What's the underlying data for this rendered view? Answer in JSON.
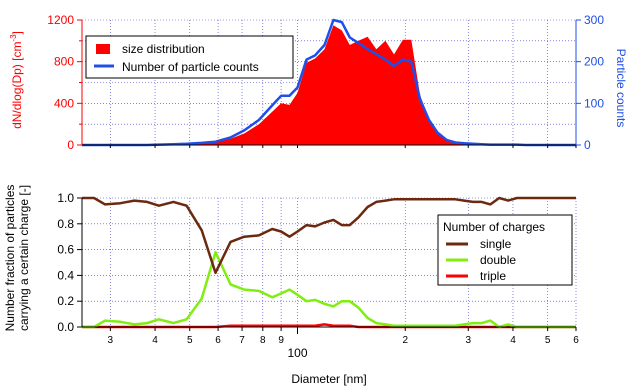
{
  "colors": {
    "red": "#ff0000",
    "blue": "#1f4fe8",
    "brown": "#6b2a10",
    "green": "#80ee10",
    "grid": "#3a3ad0",
    "axis": "#000000"
  },
  "chart_data": [
    {
      "type": "area",
      "xscale": "log",
      "xlim": [
        25,
        600
      ],
      "ylim": [
        0,
        1200
      ],
      "y2lim": [
        0,
        300
      ],
      "ylabel": "dN/dlog(Dp) [cm",
      "ylabel_sup": "-3",
      "ylabel_end": "]",
      "y2label": "Particle counts",
      "yticks": [
        "0",
        "400",
        "800",
        "1200"
      ],
      "y2ticks": [
        "0",
        "100",
        "200",
        "300"
      ],
      "grid": true,
      "legend": {
        "placement": "top-left",
        "entries": [
          "size distribution",
          "Number of particle counts"
        ]
      },
      "x": [
        25,
        27,
        29,
        32,
        35,
        38,
        41,
        45,
        49,
        54,
        59,
        65,
        71,
        78,
        85,
        90,
        95,
        100,
        106,
        112,
        119,
        126,
        133,
        140,
        148,
        157,
        166,
        176,
        186,
        197,
        208,
        220,
        233,
        246,
        261,
        276,
        292,
        309,
        327,
        346,
        366,
        388,
        410,
        434,
        460,
        487,
        515,
        545,
        577,
        600
      ],
      "series": [
        {
          "name": "size distribution",
          "kind": "area",
          "axis": "left",
          "values": [
            0,
            0,
            0,
            0,
            0,
            0,
            0,
            5,
            8,
            15,
            30,
            60,
            110,
            200,
            320,
            400,
            385,
            500,
            790,
            830,
            920,
            1150,
            1100,
            960,
            1000,
            1040,
            920,
            1000,
            870,
            1010,
            1010,
            480,
            250,
            120,
            50,
            20,
            10,
            5,
            3,
            2,
            0,
            0,
            0,
            0,
            0,
            0,
            0,
            0,
            0,
            0
          ]
        },
        {
          "name": "Number of particle counts",
          "kind": "line",
          "axis": "right",
          "values": [
            0,
            0,
            0,
            0,
            0,
            0,
            1,
            2,
            3,
            5,
            8,
            18,
            35,
            60,
            95,
            118,
            118,
            138,
            205,
            215,
            240,
            300,
            295,
            258,
            245,
            230,
            218,
            205,
            190,
            205,
            200,
            110,
            60,
            30,
            12,
            6,
            4,
            3,
            2,
            1,
            1,
            1,
            1,
            0,
            0,
            0,
            0,
            0,
            0,
            0
          ]
        }
      ]
    },
    {
      "type": "line",
      "xscale": "log",
      "xlim": [
        25,
        600
      ],
      "ylim": [
        0,
        1
      ],
      "ylabel_lines": [
        "Number fraction of particles",
        "carrying a certain charge [-]"
      ],
      "yticks": [
        "0.0",
        "0.2",
        "0.4",
        "0.6",
        "0.8",
        "1.0"
      ],
      "xlabel": "Diameter [nm]",
      "xtick_labels": [
        {
          "x": 30,
          "label": "3"
        },
        {
          "x": 40,
          "label": "4"
        },
        {
          "x": 50,
          "label": "5"
        },
        {
          "x": 60,
          "label": "6"
        },
        {
          "x": 70,
          "label": "7"
        },
        {
          "x": 80,
          "label": "8"
        },
        {
          "x": 90,
          "label": "9"
        },
        {
          "x": 200,
          "label": "2"
        },
        {
          "x": 300,
          "label": "3"
        },
        {
          "x": 400,
          "label": "4"
        },
        {
          "x": 500,
          "label": "5"
        },
        {
          "x": 600,
          "label": "6"
        }
      ],
      "decade_label": {
        "x": 100,
        "label": "100"
      },
      "grid": true,
      "legend": {
        "placement": "bottom-right",
        "title": "Number of charges",
        "entries": [
          "single",
          "double",
          "triple"
        ]
      },
      "x": [
        25,
        27,
        29,
        32,
        35,
        38,
        41,
        45,
        49,
        54,
        59,
        65,
        71,
        78,
        85,
        90,
        95,
        100,
        106,
        112,
        119,
        126,
        133,
        140,
        148,
        157,
        166,
        176,
        186,
        197,
        208,
        220,
        233,
        246,
        261,
        276,
        292,
        309,
        327,
        346,
        366,
        388,
        410,
        434,
        460,
        487,
        515,
        545,
        577,
        600
      ],
      "series": [
        {
          "name": "single",
          "values": [
            1.0,
            1.0,
            0.95,
            0.96,
            0.98,
            0.97,
            0.94,
            0.97,
            0.94,
            0.75,
            0.42,
            0.66,
            0.7,
            0.71,
            0.76,
            0.74,
            0.7,
            0.74,
            0.79,
            0.78,
            0.81,
            0.83,
            0.79,
            0.79,
            0.85,
            0.93,
            0.97,
            0.98,
            0.99,
            0.99,
            0.99,
            0.99,
            0.99,
            0.99,
            0.99,
            0.99,
            0.98,
            0.97,
            0.97,
            0.95,
            1.0,
            0.98,
            1.0,
            1.0,
            1.0,
            1.0,
            1.0,
            1.0,
            1.0,
            1.0
          ]
        },
        {
          "name": "double",
          "values": [
            0,
            0,
            0.05,
            0.04,
            0.02,
            0.03,
            0.06,
            0.03,
            0.06,
            0.22,
            0.58,
            0.33,
            0.29,
            0.28,
            0.23,
            0.26,
            0.29,
            0.25,
            0.2,
            0.21,
            0.18,
            0.16,
            0.2,
            0.2,
            0.15,
            0.07,
            0.03,
            0.02,
            0.01,
            0.01,
            0.01,
            0.01,
            0.01,
            0.01,
            0.01,
            0.01,
            0.02,
            0.03,
            0.03,
            0.05,
            0.0,
            0.02,
            0.0,
            0.0,
            0.0,
            0.0,
            0.0,
            0.0,
            0.0,
            0.0
          ]
        },
        {
          "name": "triple",
          "values": [
            0,
            0,
            0,
            0,
            0,
            0,
            0,
            0,
            0,
            0,
            0,
            0.01,
            0.01,
            0.01,
            0.01,
            0.01,
            0.01,
            0.01,
            0.01,
            0.01,
            0.02,
            0.01,
            0.01,
            0.01,
            0,
            0,
            0,
            0,
            0,
            0,
            0,
            0,
            0,
            0,
            0,
            0,
            0,
            0,
            0,
            0,
            0,
            0,
            0,
            0,
            0,
            0,
            0,
            0,
            0,
            0
          ]
        }
      ]
    }
  ]
}
